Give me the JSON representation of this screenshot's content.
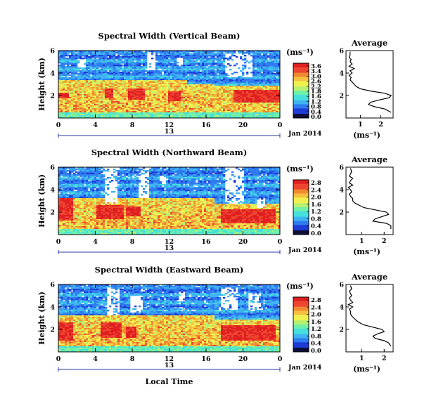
{
  "chart_data": {
    "type": "heatmap",
    "x_axis_label": "Local Time",
    "date_label": "13",
    "month_label": "Jan 2014",
    "y_axis_label": "Height (km)",
    "unit_label": "(ms⁻¹)",
    "avg_title": "Average",
    "avg_xlabel": "(ms⁻¹)",
    "x_ticks": [
      "0",
      "4",
      "8",
      "12",
      "16",
      "20",
      "0"
    ],
    "y_ticks": [
      "6",
      "4",
      "2"
    ],
    "ylim": [
      0,
      6
    ],
    "colormap": [
      "#1a1a7a",
      "#1e3dd8",
      "#2f7cf0",
      "#3fb4f2",
      "#46e0da",
      "#70f0a8",
      "#b8f070",
      "#f0f050",
      "#f5c040",
      "#f08a30",
      "#ee4530",
      "#e02020"
    ],
    "panels": [
      {
        "title": "Spectral Width (Vertical Beam)",
        "cbar_ticks": [
          "3.6",
          "3.4",
          "3.0",
          "2.6",
          "2.2",
          "1.8",
          "1.6",
          "1.2",
          "0.8",
          "0.4",
          "0.0"
        ],
        "avg_xticks": [
          "1",
          "2"
        ],
        "avg_xlim": [
          0.3,
          2.6
        ],
        "avg_profile_height_km": [
          0.5,
          0.8,
          1.0,
          1.2,
          1.4,
          1.6,
          1.8,
          2.0,
          2.2,
          2.4,
          2.6,
          2.8,
          3.0,
          3.2,
          3.4,
          3.6,
          3.8,
          4.0,
          4.2,
          4.4,
          4.6,
          4.8,
          5.0,
          5.2,
          5.4,
          5.6,
          5.9
        ],
        "avg_profile_value": [
          2.5,
          2.2,
          1.7,
          1.4,
          1.5,
          1.9,
          2.4,
          2.5,
          2.2,
          1.5,
          1.0,
          0.8,
          0.7,
          0.6,
          0.5,
          0.55,
          0.45,
          0.6,
          0.5,
          0.7,
          0.45,
          0.6,
          0.5,
          0.55,
          0.45,
          0.5,
          0.5
        ]
      },
      {
        "title": "Spectral Width (Northward Beam)",
        "cbar_ticks": [
          "2.8",
          "2.4",
          "2.0",
          "1.6",
          "1.2",
          "0.8",
          "0.4",
          "0.0"
        ],
        "avg_xticks": [
          "1",
          "2"
        ],
        "avg_xlim": [
          0.3,
          2.4
        ],
        "avg_profile_height_km": [
          0.5,
          0.8,
          1.0,
          1.2,
          1.4,
          1.6,
          1.8,
          2.0,
          2.2,
          2.4,
          2.6,
          2.8,
          3.0,
          3.2,
          3.4,
          3.6,
          3.8,
          4.0,
          4.2,
          4.4,
          4.6,
          4.8,
          5.0,
          5.2,
          5.4,
          5.6,
          5.9
        ],
        "avg_profile_value": [
          2.3,
          2.3,
          2.1,
          1.5,
          1.6,
          1.9,
          2.2,
          2.1,
          1.6,
          1.1,
          0.9,
          0.7,
          0.6,
          0.6,
          0.5,
          0.45,
          0.55,
          0.5,
          0.4,
          0.6,
          0.45,
          0.5,
          0.6,
          0.45,
          0.5,
          0.55,
          0.5
        ]
      },
      {
        "title": "Spectral Width (Eastward Beam)",
        "cbar_ticks": [
          "2.8",
          "2.4",
          "2.0",
          "1.6",
          "1.2",
          "0.8",
          "0.4",
          "0.0"
        ],
        "avg_xticks": [
          "1",
          "2"
        ],
        "avg_xlim": [
          0.3,
          2.4
        ],
        "avg_profile_height_km": [
          0.5,
          0.8,
          1.0,
          1.2,
          1.4,
          1.6,
          1.8,
          2.0,
          2.2,
          2.4,
          2.6,
          2.8,
          3.0,
          3.2,
          3.4,
          3.6,
          3.8,
          4.0,
          4.2,
          4.4,
          4.6,
          4.8,
          5.0,
          5.2,
          5.4,
          5.6,
          5.9
        ],
        "avg_profile_value": [
          2.3,
          2.2,
          2.0,
          1.6,
          1.5,
          1.7,
          2.0,
          1.9,
          1.5,
          1.1,
          0.9,
          0.75,
          0.65,
          0.55,
          0.5,
          0.5,
          0.45,
          0.6,
          0.4,
          0.6,
          0.5,
          0.45,
          0.55,
          0.5,
          0.45,
          0.55,
          0.5
        ]
      }
    ]
  }
}
